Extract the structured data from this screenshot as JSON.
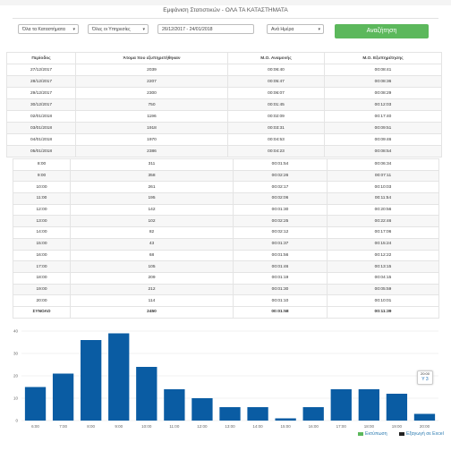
{
  "header": {
    "title": "Εμφάνιση Στατιστικών - ΟΛΑ ΤΑ ΚΑΤΑΣΤΗΜΑΤΑ"
  },
  "filters": {
    "store": "Όλα τα Καταστήματα",
    "service": "Όλες οι Υπηρεσίες",
    "date_range": "26/12/2017 - 24/01/2018",
    "period": "Ανά Ημέρα",
    "search_label": "Αναζήτηση"
  },
  "daily_table": {
    "headers": [
      "Περίοδος",
      "Άτομα που εξυπηρετήθηκαν",
      "Μ.Ο. Αναμονής",
      "Μ.Ο. Εξυπηρέτησης"
    ],
    "rows": [
      [
        "27/12/2017",
        "2039",
        "00:06:40",
        "00:08:41"
      ],
      [
        "28/12/2017",
        "2207",
        "00:05:47",
        "00:08:36"
      ],
      [
        "29/12/2017",
        "2300",
        "00:06:07",
        "00:08:29"
      ],
      [
        "30/12/2017",
        "750",
        "00:01:45",
        "00:12:03"
      ],
      [
        "02/01/2018",
        "1196",
        "00:02:09",
        "00:17:40"
      ],
      [
        "03/01/2018",
        "1918",
        "00:03:31",
        "00:09:51"
      ],
      [
        "04/01/2018",
        "1970",
        "00:04:53",
        "00:09:46"
      ],
      [
        "05/01/2018",
        "2386",
        "00:04:23",
        "00:08:54"
      ]
    ]
  },
  "hourly_table": {
    "rows": [
      [
        "8:00",
        "311",
        "00:01:54",
        "00:06:34"
      ],
      [
        "9:00",
        "358",
        "00:02:26",
        "00:07:11"
      ],
      [
        "10:00",
        "261",
        "00:02:17",
        "00:10:03"
      ],
      [
        "11:00",
        "195",
        "00:02:06",
        "00:11:54"
      ],
      [
        "12:00",
        "142",
        "00:01:30",
        "00:20:56"
      ],
      [
        "13:00",
        "102",
        "00:02:25",
        "00:22:46"
      ],
      [
        "14:00",
        "82",
        "00:02:12",
        "00:17:06"
      ],
      [
        "15:00",
        "43",
        "00:01:37",
        "00:15:24"
      ],
      [
        "16:00",
        "68",
        "00:01:56",
        "00:12:22"
      ],
      [
        "17:00",
        "105",
        "00:01:46",
        "00:13:15"
      ],
      [
        "18:00",
        "209",
        "00:01:19",
        "00:04:15"
      ],
      [
        "19:00",
        "212",
        "00:01:30",
        "00:05:59"
      ],
      [
        "20:00",
        "114",
        "00:01:10",
        "00:10:01"
      ]
    ],
    "totals": [
      "ΣΥΝΟΛΟ",
      "2450",
      "00:01:58",
      "00:11:39"
    ]
  },
  "chart_data": {
    "type": "bar",
    "categories": [
      "6:00",
      "7:00",
      "8:00",
      "9:00",
      "10:00",
      "11:00",
      "12:00",
      "13:00",
      "14:00",
      "15:00",
      "16:00",
      "17:00",
      "18:00",
      "19:00",
      "20:00"
    ],
    "series": [
      {
        "name": "Εκτύπωση",
        "values": [
          15,
          21,
          36,
          39,
          24,
          14,
          10,
          6,
          6,
          1,
          6,
          14,
          14,
          12,
          3
        ]
      }
    ],
    "ylim": [
      0,
      40
    ],
    "yticks": [
      0,
      10,
      20,
      30,
      40
    ],
    "grid": true,
    "legend": "bottom-right",
    "bar_color": "#0a5ca3",
    "tooltip": {
      "label": "20:00",
      "value": "Υ 3"
    }
  },
  "legend": {
    "items": [
      "Εκτύπωση",
      "Εξαγωγή σε Excel"
    ]
  }
}
